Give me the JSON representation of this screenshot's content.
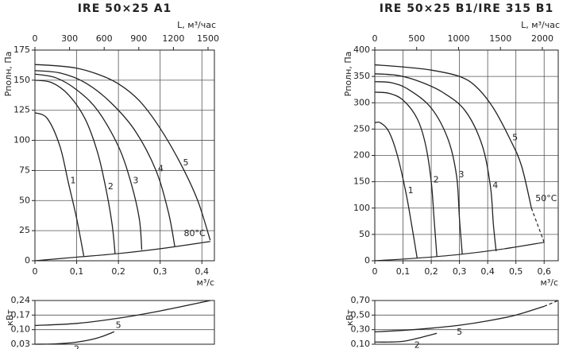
{
  "chart_data": [
    {
      "type": "line",
      "title": "IRE 50×25 A1",
      "xlabel": "м³/с",
      "x2label": "L, м³/час",
      "ylabel": "Рполн, Па",
      "xlim": [
        0,
        0.43
      ],
      "xticks": [
        0,
        {
          "value": 0.1,
          "label": "0,1"
        },
        {
          "value": 0.2,
          "label": "0,2"
        },
        {
          "value": 0.3,
          "label": "0,3"
        },
        {
          "value": 0.4,
          "label": "0,4"
        }
      ],
      "x2lim": [
        0,
        1555
      ],
      "x2ticks": [
        0,
        300,
        600,
        900,
        1200,
        1500
      ],
      "ylim": [
        0,
        175
      ],
      "yticks": [
        0,
        25,
        50,
        75,
        100,
        125,
        150,
        175
      ],
      "grid": true,
      "color": "#222222",
      "series": [
        {
          "name": "1",
          "x": [
            0,
            0.03,
            0.06,
            0.08,
            0.1,
            0.117
          ],
          "values": [
            123,
            118,
            95,
            65,
            35,
            4
          ]
        },
        {
          "name": "2",
          "x": [
            0,
            0.04,
            0.08,
            0.12,
            0.15,
            0.17,
            0.185,
            0.192
          ],
          "values": [
            150,
            148,
            138,
            118,
            90,
            60,
            30,
            6
          ]
        },
        {
          "name": "3",
          "x": [
            0,
            0.05,
            0.1,
            0.15,
            0.2,
            0.23,
            0.25,
            0.256
          ],
          "values": [
            155,
            152,
            142,
            125,
            95,
            65,
            35,
            9
          ]
        },
        {
          "name": "4",
          "x": [
            0,
            0.06,
            0.12,
            0.18,
            0.24,
            0.29,
            0.32,
            0.335
          ],
          "values": [
            158,
            156,
            148,
            132,
            108,
            75,
            40,
            12
          ]
        },
        {
          "name": "5",
          "x": [
            0,
            0.05,
            0.1,
            0.15,
            0.2,
            0.25,
            0.3,
            0.35,
            0.39,
            0.42
          ],
          "values": [
            163,
            162,
            160,
            155,
            147,
            133,
            110,
            80,
            50,
            17
          ]
        }
      ],
      "lines": [
        {
          "x": [
            0,
            0.1,
            0.2,
            0.3,
            0.42
          ],
          "values": [
            0,
            3,
            6,
            10,
            16
          ],
          "dashed": false,
          "label": "80°C"
        }
      ]
    },
    {
      "type": "line",
      "ylabel": "кВт",
      "xlim": [
        0,
        0.43
      ],
      "ylim": [
        0.03,
        0.24
      ],
      "yticks": [
        {
          "value": 0.03,
          "label": "0,03"
        },
        {
          "value": 0.1,
          "label": "0,10"
        },
        {
          "value": 0.17,
          "label": "0,17"
        },
        {
          "value": 0.24,
          "label": "0,24"
        }
      ],
      "grid": true,
      "color": "#222222",
      "series": [
        {
          "name": "5",
          "x": [
            0,
            0.1,
            0.2,
            0.3,
            0.42
          ],
          "values": [
            0.12,
            0.13,
            0.155,
            0.19,
            0.24
          ]
        },
        {
          "name": "2",
          "x": [
            0,
            0.05,
            0.1,
            0.15,
            0.19
          ],
          "values": [
            0.03,
            0.032,
            0.04,
            0.06,
            0.09
          ]
        }
      ],
      "lines": []
    },
    {
      "type": "line",
      "title": "IRE 50×25 B1/IRE 315 B1",
      "xlabel": "м³/с",
      "x2label": "L, м³/час",
      "ylabel": "Рполн, Па",
      "xlim": [
        0,
        0.65
      ],
      "xticks": [
        0,
        {
          "value": 0.1,
          "label": "0,1"
        },
        {
          "value": 0.2,
          "label": "0,2"
        },
        {
          "value": 0.3,
          "label": "0,3"
        },
        {
          "value": 0.4,
          "label": "0,4"
        },
        {
          "value": 0.5,
          "label": "0,5"
        },
        {
          "value": 0.6,
          "label": "0,6"
        }
      ],
      "x2lim": [
        0,
        2190
      ],
      "x2ticks": [
        0,
        500,
        1000,
        1500,
        2000
      ],
      "ylim": [
        0,
        400
      ],
      "yticks": [
        0,
        50,
        100,
        150,
        200,
        250,
        300,
        350,
        400
      ],
      "grid": true,
      "color": "#222222",
      "series": [
        {
          "name": "1",
          "x": [
            0,
            0.02,
            0.05,
            0.08,
            0.11,
            0.13,
            0.15
          ],
          "values": [
            262,
            262,
            245,
            200,
            130,
            70,
            5
          ]
        },
        {
          "name": "2",
          "x": [
            0,
            0.05,
            0.1,
            0.15,
            0.18,
            0.2,
            0.21,
            0.22
          ],
          "values": [
            320,
            318,
            305,
            270,
            220,
            150,
            80,
            8
          ]
        },
        {
          "name": "3",
          "x": [
            0,
            0.06,
            0.12,
            0.2,
            0.26,
            0.29,
            0.3,
            0.31
          ],
          "values": [
            340,
            338,
            325,
            290,
            230,
            160,
            80,
            12
          ]
        },
        {
          "name": "4",
          "x": [
            0,
            0.08,
            0.16,
            0.24,
            0.32,
            0.38,
            0.41,
            0.42,
            0.43
          ],
          "values": [
            355,
            352,
            340,
            320,
            285,
            220,
            140,
            70,
            18
          ]
        },
        {
          "name": "5",
          "x": [
            0,
            0.1,
            0.2,
            0.3,
            0.36,
            0.42,
            0.48,
            0.52,
            0.555
          ],
          "values": [
            372,
            368,
            362,
            350,
            330,
            290,
            230,
            180,
            100
          ]
        }
      ],
      "lines": [
        {
          "x": [
            0,
            0.15,
            0.3,
            0.45,
            0.6
          ],
          "values": [
            0,
            5,
            12,
            22,
            35
          ],
          "dashed": false
        },
        {
          "x": [
            0.555,
            0.6
          ],
          "values": [
            100,
            35
          ],
          "dashed": true,
          "label": "50°C"
        }
      ]
    },
    {
      "type": "line",
      "ylabel": "кВт",
      "xlim": [
        0,
        0.65
      ],
      "ylim": [
        0.1,
        0.7
      ],
      "yticks": [
        {
          "value": 0.1,
          "label": "0,10"
        },
        {
          "value": 0.3,
          "label": "0,30"
        },
        {
          "value": 0.5,
          "label": "0,50"
        },
        {
          "value": 0.7,
          "label": "0,70"
        }
      ],
      "grid": true,
      "color": "#222222",
      "series": [
        {
          "name": "5",
          "x": [
            0,
            0.1,
            0.2,
            0.3,
            0.4,
            0.5,
            0.6
          ],
          "values": [
            0.27,
            0.29,
            0.32,
            0.36,
            0.42,
            0.5,
            0.62
          ]
        },
        {
          "name": "2",
          "x": [
            0,
            0.05,
            0.1,
            0.15,
            0.2,
            0.22
          ],
          "values": [
            0.13,
            0.13,
            0.14,
            0.18,
            0.23,
            0.25
          ]
        }
      ],
      "lines": [
        {
          "x": [
            0.6,
            0.65
          ],
          "values": [
            0.62,
            0.7
          ],
          "dashed": true
        }
      ]
    }
  ]
}
